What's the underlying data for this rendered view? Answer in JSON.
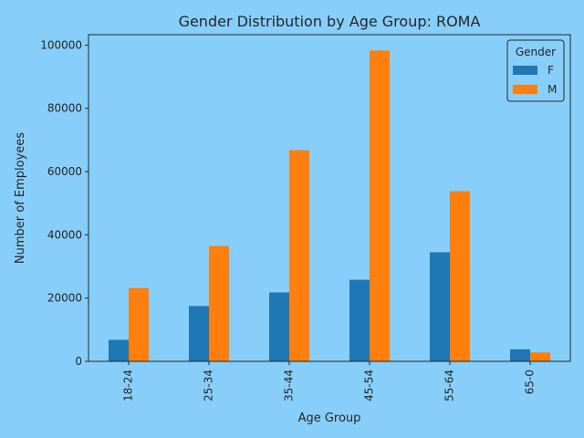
{
  "chart_data": {
    "type": "bar",
    "title": "Gender Distribution by Age Group: ROMA",
    "xlabel": "Age Group",
    "ylabel": "Number of Employees",
    "categories": [
      "18-24",
      "25-34",
      "35-44",
      "45-54",
      "55-64",
      "65-0"
    ],
    "series": [
      {
        "name": "F",
        "color": "#1f77b4",
        "values": [
          6800,
          17500,
          21800,
          25800,
          34500,
          3800
        ]
      },
      {
        "name": "M",
        "color": "#ff7f0e",
        "values": [
          23200,
          36500,
          66800,
          98300,
          53800,
          2800
        ]
      }
    ],
    "ylim": [
      0,
      103300
    ],
    "yticks": [
      0,
      20000,
      40000,
      60000,
      80000,
      100000
    ],
    "grid": false,
    "legend": {
      "title": "Gender",
      "placement": "top-right"
    },
    "background": "#87cefa"
  }
}
